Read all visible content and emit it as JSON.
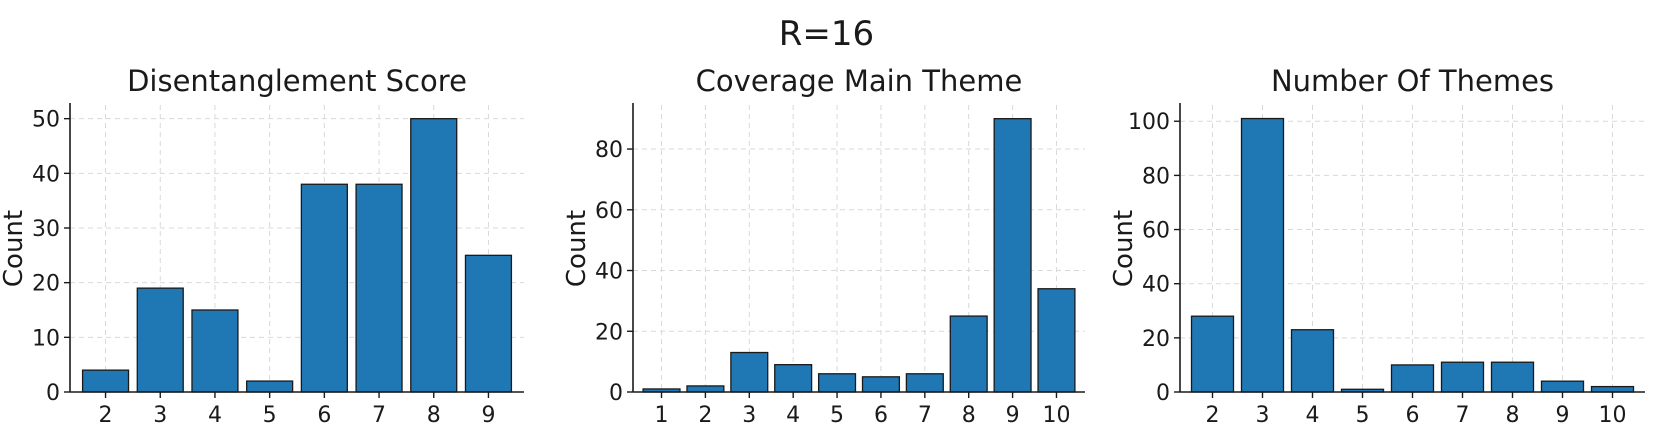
{
  "figure": {
    "suptitle": "R=16"
  },
  "chart_data": [
    {
      "type": "bar",
      "title": "Disentanglement Score",
      "xlabel": "",
      "ylabel": "Count",
      "categories": [
        "2",
        "3",
        "4",
        "5",
        "6",
        "7",
        "8",
        "9"
      ],
      "values": [
        4,
        19,
        15,
        2,
        38,
        38,
        50,
        25
      ],
      "ylim": [
        0,
        52.5
      ],
      "yticks": [
        0,
        10,
        20,
        30,
        40,
        50
      ],
      "bar_color": "#1f77b4",
      "edge_color": "#1a1a1a",
      "grid": true
    },
    {
      "type": "bar",
      "title": "Coverage Main Theme",
      "xlabel": "",
      "ylabel": "Count",
      "categories": [
        "1",
        "2",
        "3",
        "4",
        "5",
        "6",
        "7",
        "8",
        "9",
        "10"
      ],
      "values": [
        1,
        2,
        13,
        9,
        6,
        5,
        6,
        25,
        90,
        34
      ],
      "ylim": [
        0,
        94.5
      ],
      "yticks": [
        0,
        20,
        40,
        60,
        80
      ],
      "bar_color": "#1f77b4",
      "edge_color": "#1a1a1a",
      "grid": true
    },
    {
      "type": "bar",
      "title": "Number Of Themes",
      "xlabel": "",
      "ylabel": "Count",
      "categories": [
        "2",
        "3",
        "4",
        "5",
        "6",
        "7",
        "8",
        "9",
        "10"
      ],
      "values": [
        28,
        101,
        23,
        1,
        10,
        11,
        11,
        4,
        2
      ],
      "ylim": [
        0,
        106
      ],
      "yticks": [
        0,
        20,
        40,
        60,
        80,
        100
      ],
      "bar_color": "#1f77b4",
      "edge_color": "#1a1a1a",
      "grid": true
    }
  ]
}
